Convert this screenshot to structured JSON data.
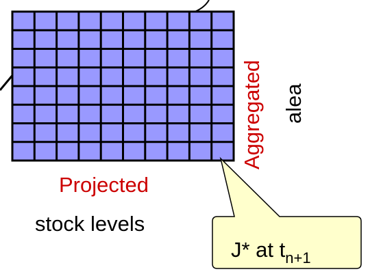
{
  "grid": {
    "rows": 8,
    "cols": 10,
    "fill_color": "#9999ff",
    "line_color": "#000000"
  },
  "labels": {
    "vertical_top": "Aggregated",
    "vertical_bottom": "alea",
    "horizontal_top": "Projected",
    "horizontal_bottom": "stock levels"
  },
  "callout": {
    "prefix": "J* at t",
    "subscript": "n+1",
    "fill_color": "#ffffcc"
  },
  "colors": {
    "accent_red": "#cc0000",
    "text": "#000000"
  }
}
